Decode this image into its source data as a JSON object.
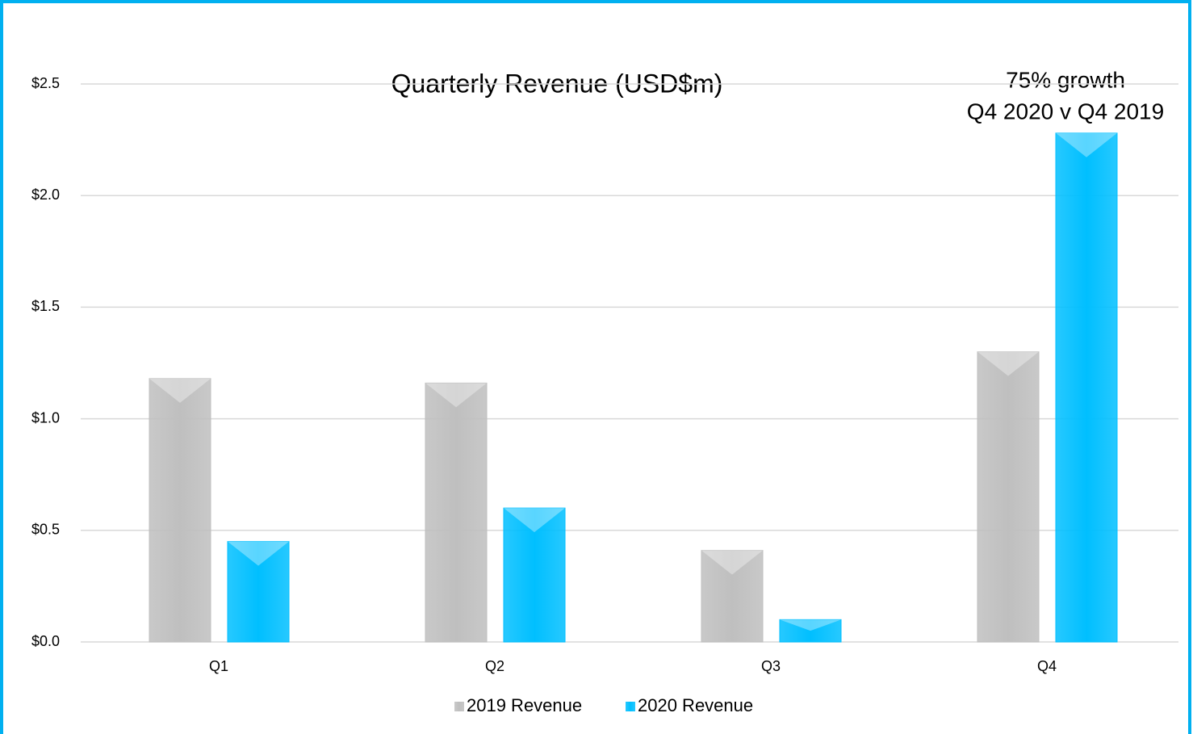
{
  "chart_data": {
    "type": "bar",
    "title": "Quarterly Revenue (USD$m)",
    "annotation": [
      "75% growth",
      "Q4 2020 v Q4 2019"
    ],
    "categories": [
      "Q1",
      "Q2",
      "Q3",
      "Q4"
    ],
    "series": [
      {
        "name": "2019 Revenue",
        "color": "#bfbfbf",
        "values": [
          1.18,
          1.16,
          0.41,
          1.3
        ]
      },
      {
        "name": "2020 Revenue",
        "color": "#00bfff",
        "values": [
          0.45,
          0.6,
          0.1,
          2.28
        ]
      }
    ],
    "ylim": [
      0,
      2.5
    ],
    "yticks": [
      {
        "value": 0,
        "label": "$0.0"
      },
      {
        "value": 0.5,
        "label": "$0.5"
      },
      {
        "value": 1,
        "label": "$1.0"
      },
      {
        "value": 1.5,
        "label": "$1.5"
      },
      {
        "value": 2,
        "label": "$2.0"
      },
      {
        "value": 2.5,
        "label": "$2.5"
      }
    ],
    "grid": true,
    "legend": "bottom"
  }
}
